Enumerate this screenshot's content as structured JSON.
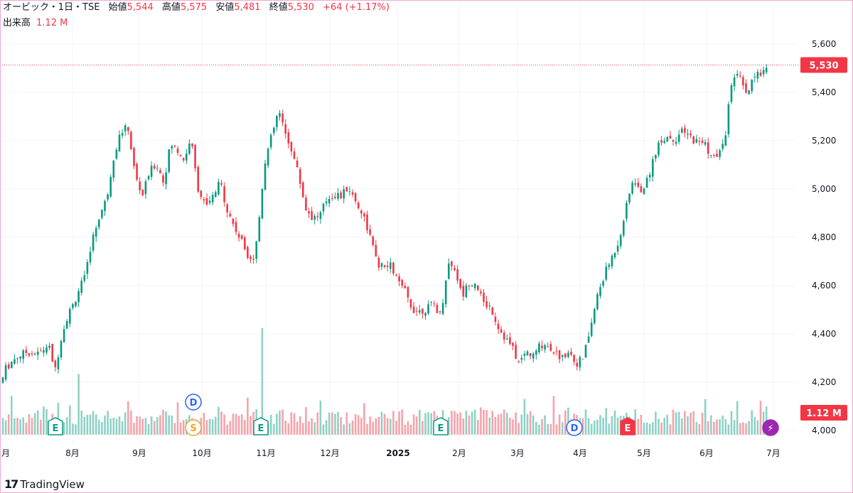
{
  "header": {
    "symbol_line": "オービック・1日・TSE",
    "open_label": "始値",
    "open_value": "5,544",
    "high_label": "高値",
    "high_value": "5,575",
    "low_label": "安値",
    "low_value": "5,481",
    "close_label": "終値",
    "close_value": "5,530",
    "change": "+64 (+1.17%)",
    "volume_label": "出来高",
    "volume_value": "1.12 M"
  },
  "brand": {
    "logo": "17",
    "name": "TradingView"
  },
  "colors": {
    "up": "#089981",
    "down": "#f23645",
    "vol_up": "#8fd1c5",
    "vol_down": "#f5a3aa",
    "grid": "#f0f3fa"
  },
  "chart_data": {
    "type": "candlestick",
    "title": "オービック・1日・TSE",
    "y_axis": {
      "ticks": [
        "4,000",
        "4,200",
        "4,400",
        "4,600",
        "4,800",
        "5,000",
        "5,200",
        "5,400",
        "5,600"
      ],
      "range": [
        3990,
        5640
      ]
    },
    "x_axis": {
      "labels": [
        "月",
        "8月",
        "9月",
        "10月",
        "11月",
        "12月",
        "2025",
        "2月",
        "3月",
        "4月",
        "5月",
        "6月",
        "7月"
      ]
    },
    "last_price": {
      "label": "5,530",
      "value": 5530
    },
    "last_volume": {
      "label": "1.12 M"
    },
    "events": [
      {
        "label": "E",
        "color": "#089981",
        "type": "earnings",
        "date_index": 1
      },
      {
        "label": "D",
        "color": "#2962ff",
        "type": "dividend",
        "date_index": 3
      },
      {
        "label": "S",
        "color": "#f0a22e",
        "type": "split",
        "date_index": 3
      },
      {
        "label": "E",
        "color": "#089981",
        "type": "earnings",
        "date_index": 4
      },
      {
        "label": "E",
        "color": "#089981",
        "type": "earnings",
        "date_index": 7
      },
      {
        "label": "D",
        "color": "#2962ff",
        "type": "dividend",
        "date_index": 9
      },
      {
        "label": "E",
        "color": "#f23645",
        "type": "earnings",
        "date_index": 10
      },
      {
        "label": "⚡",
        "color": "#9c27b0",
        "type": "news",
        "date_index": 12
      }
    ],
    "price_path": [
      [
        0,
        4180
      ],
      [
        8,
        4260
      ],
      [
        20,
        4300
      ],
      [
        38,
        4330
      ],
      [
        55,
        4320
      ],
      [
        68,
        4360
      ],
      [
        78,
        4250
      ],
      [
        85,
        4380
      ],
      [
        95,
        4480
      ],
      [
        105,
        4540
      ],
      [
        112,
        4600
      ],
      [
        120,
        4640
      ],
      [
        128,
        4780
      ],
      [
        140,
        4900
      ],
      [
        150,
        4970
      ],
      [
        160,
        5150
      ],
      [
        170,
        5250
      ],
      [
        180,
        5270
      ],
      [
        190,
        5070
      ],
      [
        200,
        4980
      ],
      [
        210,
        5080
      ],
      [
        220,
        5120
      ],
      [
        230,
        5040
      ],
      [
        240,
        5200
      ],
      [
        250,
        5170
      ],
      [
        260,
        5130
      ],
      [
        268,
        5230
      ],
      [
        278,
        5020
      ],
      [
        290,
        4930
      ],
      [
        300,
        4980
      ],
      [
        310,
        5040
      ],
      [
        320,
        4920
      ],
      [
        330,
        4850
      ],
      [
        340,
        4790
      ],
      [
        350,
        4730
      ],
      [
        358,
        4720
      ],
      [
        365,
        4900
      ],
      [
        372,
        5120
      ],
      [
        382,
        5230
      ],
      [
        392,
        5340
      ],
      [
        400,
        5250
      ],
      [
        410,
        5180
      ],
      [
        420,
        5070
      ],
      [
        430,
        4930
      ],
      [
        440,
        4890
      ],
      [
        450,
        4900
      ],
      [
        460,
        4970
      ],
      [
        470,
        4990
      ],
      [
        480,
        4980
      ],
      [
        490,
        5020
      ],
      [
        500,
        4960
      ],
      [
        510,
        4910
      ],
      [
        520,
        4820
      ],
      [
        530,
        4700
      ],
      [
        540,
        4680
      ],
      [
        550,
        4690
      ],
      [
        560,
        4620
      ],
      [
        570,
        4580
      ],
      [
        580,
        4510
      ],
      [
        590,
        4500
      ],
      [
        600,
        4510
      ],
      [
        610,
        4530
      ],
      [
        620,
        4480
      ],
      [
        630,
        4700
      ],
      [
        640,
        4680
      ],
      [
        650,
        4560
      ],
      [
        660,
        4620
      ],
      [
        670,
        4620
      ],
      [
        680,
        4530
      ],
      [
        690,
        4520
      ],
      [
        700,
        4440
      ],
      [
        710,
        4390
      ],
      [
        720,
        4350
      ],
      [
        730,
        4280
      ],
      [
        740,
        4330
      ],
      [
        750,
        4310
      ],
      [
        760,
        4360
      ],
      [
        770,
        4360
      ],
      [
        780,
        4330
      ],
      [
        790,
        4300
      ],
      [
        800,
        4340
      ],
      [
        810,
        4280
      ],
      [
        820,
        4300
      ],
      [
        830,
        4420
      ],
      [
        840,
        4560
      ],
      [
        850,
        4650
      ],
      [
        860,
        4720
      ],
      [
        870,
        4790
      ],
      [
        880,
        4920
      ],
      [
        890,
        5050
      ],
      [
        900,
        5000
      ],
      [
        910,
        5040
      ],
      [
        920,
        5150
      ],
      [
        930,
        5220
      ],
      [
        940,
        5230
      ],
      [
        950,
        5220
      ],
      [
        960,
        5250
      ],
      [
        970,
        5230
      ],
      [
        980,
        5210
      ],
      [
        990,
        5210
      ],
      [
        1000,
        5150
      ],
      [
        1010,
        5140
      ],
      [
        1020,
        5230
      ],
      [
        1030,
        5480
      ],
      [
        1040,
        5480
      ],
      [
        1050,
        5400
      ],
      [
        1060,
        5470
      ],
      [
        1070,
        5500
      ],
      [
        1080,
        5530
      ]
    ],
    "volume_range": [
      0,
      1.0
    ],
    "notable_volume": [
      {
        "x": 370,
        "value": 1.0
      },
      {
        "x": 110,
        "value": 0.57
      },
      {
        "x": 80,
        "value": 0.3
      }
    ]
  }
}
